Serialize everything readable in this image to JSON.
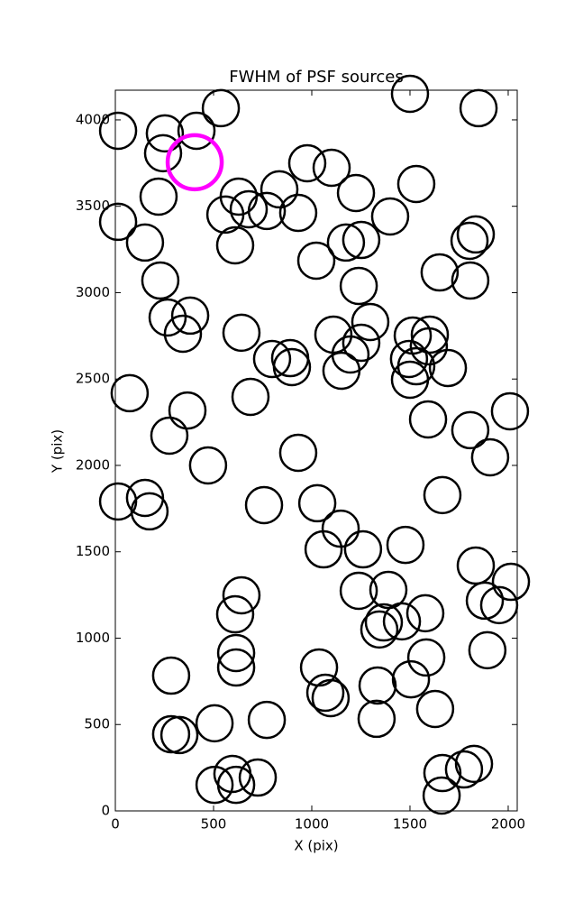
{
  "chart_data": {
    "type": "scatter",
    "title": "FWHM of PSF sources",
    "x_label": "X (pix)",
    "y_label": "Y (pix)",
    "xlim": [
      0,
      2046
    ],
    "ylim": [
      0,
      4172
    ],
    "xticks": [
      0,
      500,
      1000,
      1500,
      2000
    ],
    "yticks": [
      0,
      500,
      1000,
      1500,
      2000,
      2500,
      3000,
      3500,
      4000
    ],
    "series": [
      {
        "color": "#000000",
        "marker": "open-circle",
        "x": [
          14,
          252,
          413,
          537,
          243,
          220,
          14,
          151,
          229,
          266,
          381,
          344,
          73,
          367,
          275,
          472,
          14,
          151,
          174,
          284,
          284,
          326,
          505,
          505,
          596,
          615,
          725,
          771,
          615,
          615,
          610,
          642,
          757,
          931,
          688,
          642,
          798,
          899,
          890,
          610,
          628,
          560,
          679,
          771,
          835,
          931,
          977,
          1101,
          1023,
          1174,
          1225,
          1252,
          1239,
          1298,
          1110,
          1252,
          1197,
          1151,
          1399,
          1532,
          1500,
          1849,
          1651,
          1803,
          1835,
          1807,
          1514,
          1601,
          1596,
          1495,
          1532,
          1500,
          1693,
          1592,
          1807,
          1908,
          2009,
          1665,
          1028,
          1147,
          1060,
          1261,
          1477,
          1835,
          2014,
          1954,
          1881,
          1578,
          1390,
          1239,
          1367,
          1344,
          1459,
          1583,
          1894,
          1505,
          1335,
          1628,
          1330,
          1037,
          1069,
          1096,
          1665,
          1661,
          1775,
          1826
        ],
        "y": [
          3937,
          3922,
          3937,
          4068,
          3807,
          3556,
          3410,
          3290,
          3070,
          2856,
          2867,
          2762,
          2418,
          2318,
          2172,
          2000,
          1791,
          1812,
          1734,
          783,
          444,
          439,
          507,
          151,
          214,
          151,
          193,
          527,
          830,
          914,
          1138,
          1248,
          1770,
          2073,
          2397,
          2768,
          2616,
          2569,
          2621,
          3274,
          3556,
          3452,
          3483,
          3473,
          3598,
          3462,
          3749,
          3723,
          3185,
          3290,
          3577,
          3305,
          3039,
          2830,
          2757,
          2710,
          2642,
          2548,
          3441,
          3629,
          4151,
          4068,
          3117,
          3300,
          3337,
          3070,
          2752,
          2757,
          2689,
          2616,
          2574,
          2496,
          2564,
          2266,
          2204,
          2047,
          2313,
          1828,
          1781,
          1634,
          1514,
          1514,
          1540,
          1420,
          1326,
          1191,
          1217,
          1144,
          1279,
          1274,
          1091,
          1050,
          1097,
          888,
          930,
          762,
          726,
          590,
          533,
          830,
          684,
          653,
          219,
          89,
          240,
          272
        ]
      },
      {
        "color": "#ff00ff",
        "marker": "open-circle",
        "x": [
          404
        ],
        "y": [
          3755
        ]
      }
    ]
  }
}
